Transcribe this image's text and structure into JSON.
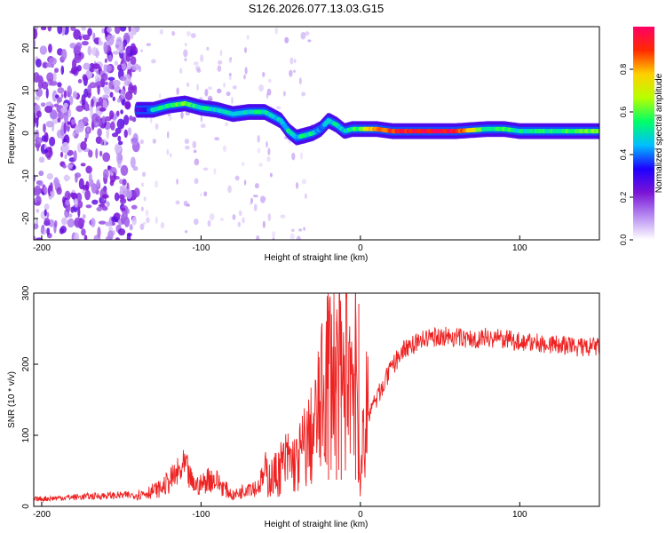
{
  "figure": {
    "title": "S126.2026.077.13.03.G15"
  },
  "colorbar": {
    "label": "Normalized spectral amplitude",
    "ticks": [
      "0.0",
      "0.2",
      "0.4",
      "0.6",
      "0.8"
    ],
    "tick_values": [
      0.0,
      0.2,
      0.4,
      0.6,
      0.8
    ],
    "range": [
      0.0,
      1.0
    ],
    "colors": [
      "#ffffff",
      "#b78cf2",
      "#7a14d6",
      "#1e00ff",
      "#00bfff",
      "#00ff66",
      "#b8ff00",
      "#ffd000",
      "#ff2a00",
      "#ff0066"
    ]
  },
  "chart_data": [
    {
      "type": "heatmap",
      "title": "S126.2026.077.13.03.G15",
      "xlabel": "Height of straight line (km)",
      "ylabel": "Frequency (Hz)",
      "xlim": [
        -205,
        150
      ],
      "ylim": [
        -25,
        25
      ],
      "xticks": [
        -200,
        -100,
        0,
        100
      ],
      "xtick_labels": [
        "-200",
        "-100",
        "0",
        "100"
      ],
      "yticks": [
        -20,
        -10,
        0,
        10,
        20
      ],
      "ytick_labels": [
        "-20",
        "-10",
        "0",
        "10",
        "20"
      ],
      "ridge": {
        "x": [
          -140,
          -130,
          -120,
          -110,
          -100,
          -90,
          -80,
          -70,
          -60,
          -50,
          -45,
          -40,
          -35,
          -30,
          -25,
          -20,
          -15,
          -10,
          -5,
          0,
          10,
          20,
          40,
          60,
          80,
          90,
          100,
          120,
          150
        ],
        "frequency_hz": [
          5.5,
          5.5,
          6.5,
          7,
          6,
          5.5,
          4.5,
          5,
          5,
          3,
          0.5,
          -1,
          -0.5,
          0,
          1,
          3,
          2,
          0.5,
          1,
          1,
          1,
          0.5,
          0.5,
          0.5,
          1,
          1,
          0.5,
          0.5,
          0.5
        ],
        "amplitude": [
          0.25,
          0.45,
          0.55,
          0.6,
          0.5,
          0.5,
          0.45,
          0.5,
          0.5,
          0.45,
          0.5,
          0.45,
          0.55,
          0.5,
          0.4,
          0.45,
          0.5,
          0.45,
          0.55,
          0.6,
          0.85,
          0.9,
          0.95,
          0.95,
          0.5,
          0.6,
          0.5,
          0.55,
          0.6
        ]
      },
      "noise_region_x": [
        -205,
        -140
      ]
    },
    {
      "type": "line",
      "xlabel": "Height of straight line (km)",
      "ylabel": "SNR (10 * v/v)",
      "xlim": [
        -205,
        150
      ],
      "ylim": [
        0,
        300
      ],
      "xticks": [
        -200,
        -100,
        0,
        100
      ],
      "xtick_labels": [
        "-200",
        "-100",
        "0",
        "100"
      ],
      "yticks": [
        0,
        100,
        200,
        300
      ],
      "ytick_labels": [
        "0",
        "100",
        "200",
        "300"
      ],
      "series": [
        {
          "name": "SNR",
          "color": "#ee2222",
          "x": [
            -205,
            -180,
            -160,
            -140,
            -125,
            -115,
            -110,
            -105,
            -100,
            -95,
            -90,
            -85,
            -80,
            -75,
            -70,
            -65,
            -60,
            -55,
            -50,
            -45,
            -40,
            -35,
            -30,
            -25,
            -20,
            -15,
            -10,
            -8,
            -5,
            -3,
            -1,
            0,
            2,
            5,
            10,
            15,
            20,
            25,
            30,
            40,
            50,
            60,
            70,
            80,
            90,
            100,
            110,
            120,
            130,
            140,
            150
          ],
          "y": [
            10,
            13,
            15,
            16,
            25,
            45,
            55,
            30,
            30,
            40,
            35,
            25,
            15,
            20,
            30,
            25,
            45,
            40,
            55,
            65,
            60,
            85,
            100,
            140,
            200,
            185,
            160,
            230,
            175,
            250,
            90,
            10,
            120,
            130,
            150,
            175,
            195,
            215,
            225,
            235,
            240,
            238,
            235,
            238,
            235,
            232,
            230,
            228,
            226,
            223,
            225
          ],
          "spikes": [
            {
              "x": -20,
              "y": 275
            },
            {
              "x": -15,
              "y": 260
            },
            {
              "x": -12,
              "y": 235
            },
            {
              "x": -3,
              "y": 300
            },
            {
              "x": -1,
              "y": 285
            }
          ]
        }
      ]
    }
  ]
}
